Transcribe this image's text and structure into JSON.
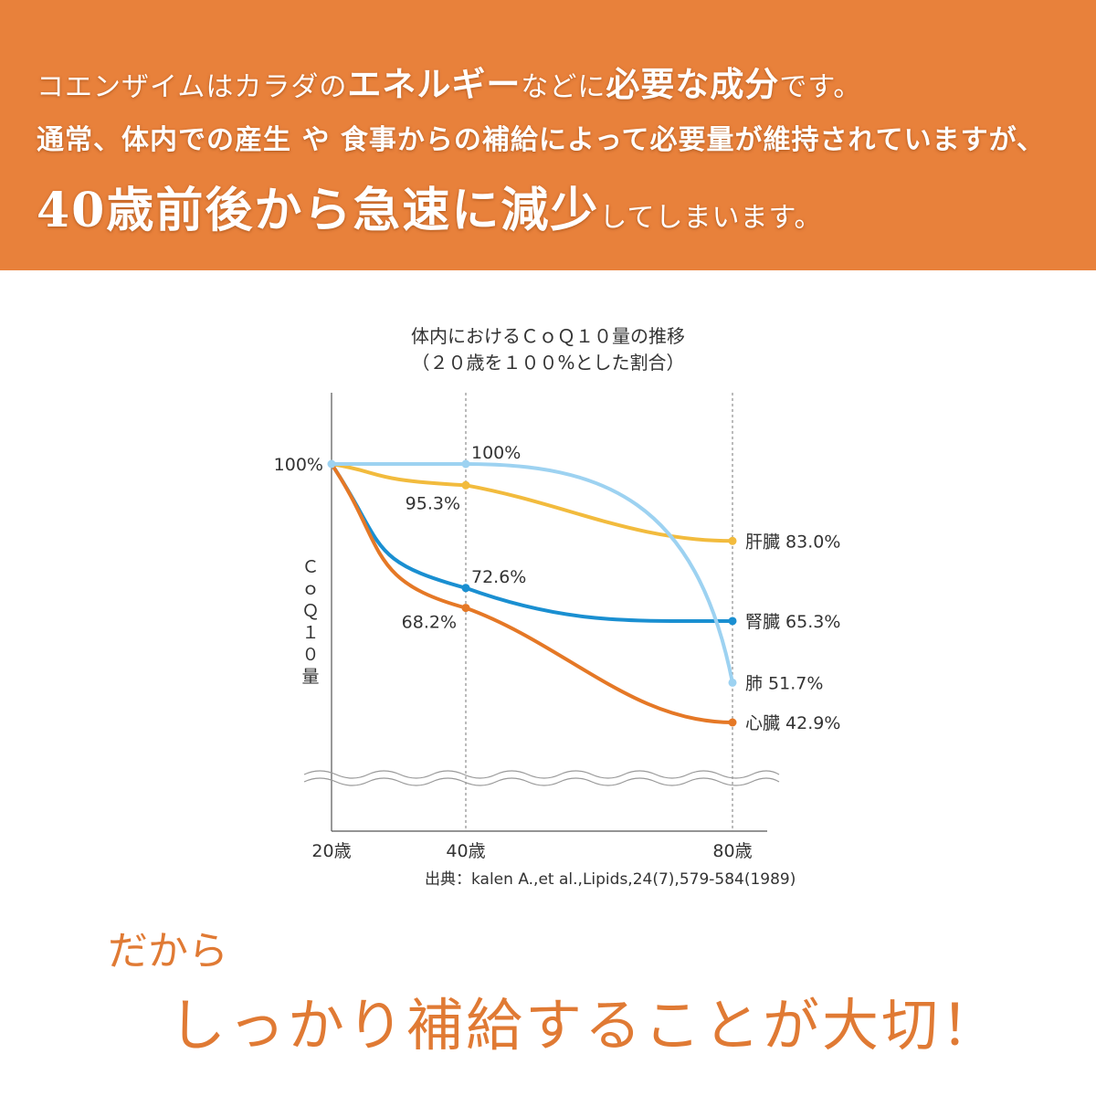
{
  "banner": {
    "line1_pre": "コエンザイムはカラダの",
    "line1_emph1": "エネルギー",
    "line1_mid": "などに",
    "line1_emph2": "必要な成分",
    "line1_post": "です。",
    "line2": "通常、体内での産生 や 食事からの補給によって必要量が維持されていますが、",
    "line3_emph": "40歳前後から急速に減少",
    "line3_post": "してしまいます。",
    "bg_color": "#e8813b"
  },
  "chart_data": {
    "type": "line",
    "title": "体内におけるＣｏＱ１０量の推移",
    "subtitle": "（２０歳を１００%とした割合）",
    "ylabel": "ＣｏＱ１０量",
    "x": [
      20,
      40,
      80
    ],
    "xtick_labels": [
      "20歳",
      "40歳",
      "80歳"
    ],
    "ytick_label": "100%",
    "ylim": [
      35,
      110
    ],
    "series": [
      {
        "name": "肝臓",
        "values": [
          100,
          95.3,
          83.0
        ],
        "color": "#f2bb3d",
        "mid_label": "95.3%",
        "end_label": "83.0%"
      },
      {
        "name": "腎臓",
        "values": [
          100,
          72.6,
          65.3
        ],
        "color": "#1a8fd1",
        "mid_label": "72.6%",
        "end_label": "65.3%"
      },
      {
        "name": "肺",
        "values": [
          100,
          100,
          51.7
        ],
        "color": "#9dd2f1",
        "mid_label": "100%",
        "end_label": "51.7%"
      },
      {
        "name": "心臓",
        "values": [
          100,
          68.2,
          42.9
        ],
        "color": "#e57826",
        "mid_label": "68.2%",
        "end_label": "42.9%"
      }
    ],
    "source": "出典：kalen A.,et al.,Lipids,24(7),579-584(1989)",
    "grid": "dashed verticals at 40 and 80"
  },
  "closing": {
    "line1": "だから",
    "line2": "しっかり補給することが大切！",
    "color": "#e07a34"
  }
}
